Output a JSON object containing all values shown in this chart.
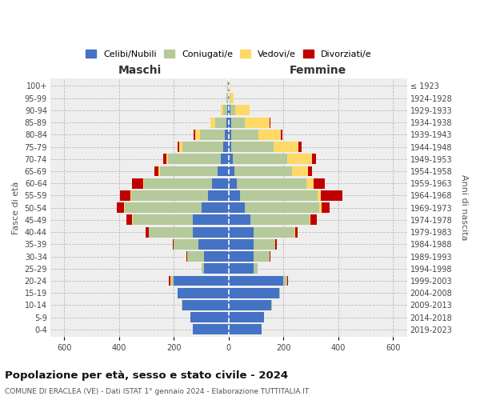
{
  "age_groups": [
    "100+",
    "95-99",
    "90-94",
    "85-89",
    "80-84",
    "75-79",
    "70-74",
    "65-69",
    "60-64",
    "55-59",
    "50-54",
    "45-49",
    "40-44",
    "35-39",
    "30-34",
    "25-29",
    "20-24",
    "15-19",
    "10-14",
    "5-9",
    "0-4"
  ],
  "birth_years": [
    "≤ 1923",
    "1924-1928",
    "1929-1933",
    "1934-1938",
    "1939-1943",
    "1944-1948",
    "1949-1953",
    "1954-1958",
    "1959-1963",
    "1964-1968",
    "1969-1973",
    "1974-1978",
    "1979-1983",
    "1984-1988",
    "1989-1993",
    "1994-1998",
    "1999-2003",
    "2004-2008",
    "2009-2013",
    "2014-2018",
    "2019-2023"
  ],
  "males": {
    "celibi": [
      2,
      2,
      5,
      8,
      15,
      20,
      30,
      40,
      60,
      75,
      100,
      130,
      130,
      110,
      90,
      90,
      200,
      185,
      170,
      140,
      130
    ],
    "coniugati": [
      2,
      5,
      15,
      40,
      90,
      150,
      190,
      210,
      250,
      280,
      280,
      220,
      160,
      90,
      60,
      10,
      10,
      2,
      2,
      0,
      0
    ],
    "vedovi": [
      0,
      2,
      8,
      20,
      18,
      10,
      8,
      5,
      2,
      2,
      2,
      2,
      2,
      0,
      0,
      0,
      2,
      0,
      0,
      0,
      0
    ],
    "divorziati": [
      0,
      0,
      0,
      0,
      5,
      5,
      10,
      15,
      40,
      40,
      25,
      20,
      10,
      5,
      5,
      0,
      5,
      0,
      0,
      0,
      0
    ]
  },
  "females": {
    "nubili": [
      2,
      2,
      5,
      8,
      10,
      10,
      15,
      20,
      30,
      40,
      60,
      80,
      90,
      90,
      90,
      90,
      200,
      185,
      155,
      130,
      120
    ],
    "coniugate": [
      2,
      5,
      20,
      50,
      100,
      155,
      200,
      210,
      255,
      285,
      270,
      215,
      150,
      80,
      60,
      15,
      15,
      2,
      2,
      0,
      0
    ],
    "vedove": [
      2,
      10,
      50,
      90,
      80,
      90,
      90,
      60,
      25,
      10,
      8,
      2,
      2,
      0,
      0,
      0,
      0,
      0,
      0,
      0,
      0
    ],
    "divorziate": [
      0,
      0,
      0,
      5,
      5,
      10,
      15,
      15,
      40,
      80,
      30,
      25,
      10,
      5,
      2,
      0,
      2,
      0,
      0,
      0,
      0
    ]
  },
  "colors": {
    "celibi_nubili": "#4472c4",
    "coniugati_e": "#b5c99a",
    "vedovi_e": "#ffd966",
    "divorziati_e": "#c00000"
  },
  "xlim": 650,
  "title": "Popolazione per età, sesso e stato civile - 2024",
  "subtitle": "COMUNE DI ERACLEA (VE) - Dati ISTAT 1° gennaio 2024 - Elaborazione TUTTITALIA.IT",
  "xlabel_left": "Maschi",
  "xlabel_right": "Femmine",
  "ylabel_left": "Fasce di età",
  "ylabel_right": "Anni di nascita",
  "legend_labels": [
    "Celibi/Nubili",
    "Coniugati/e",
    "Vedovi/e",
    "Divorziati/e"
  ],
  "background_color": "#ffffff",
  "grid_color": "#cccccc"
}
